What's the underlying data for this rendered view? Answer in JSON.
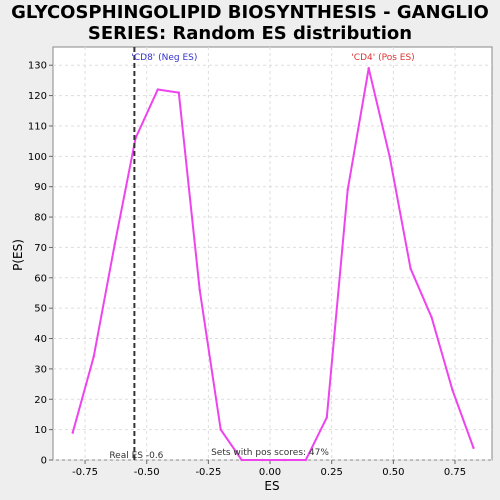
{
  "chart_data": {
    "type": "line",
    "title_lines": [
      "GLYCOSPHINGOLIPID BIOSYNTHESIS - GANGLIO",
      "SERIES: Random ES distribution"
    ],
    "xlabel": "ES",
    "ylabel": "P(ES)",
    "xlim": [
      -0.88,
      0.9
    ],
    "ylim": [
      0,
      136
    ],
    "xticks": [
      -0.75,
      -0.5,
      -0.25,
      0.0,
      0.25,
      0.5,
      0.75
    ],
    "xtick_labels": [
      "-0.75",
      "-0.50",
      "-0.25",
      "0.00",
      "0.25",
      "0.50",
      "0.75"
    ],
    "yticks": [
      0,
      10,
      20,
      30,
      40,
      50,
      60,
      70,
      80,
      90,
      100,
      110,
      120,
      130
    ],
    "ytick_labels": [
      "0",
      "10",
      "20",
      "30",
      "40",
      "50",
      "60",
      "70",
      "80",
      "90",
      "100",
      "110",
      "120",
      "130"
    ],
    "grid": true,
    "series": [
      {
        "color": "#ee44ee",
        "x": [
          -0.8,
          -0.715,
          -0.63,
          -0.545,
          -0.455,
          -0.37,
          -0.285,
          -0.2,
          -0.115,
          -0.03,
          0.06,
          0.145,
          0.23,
          0.315,
          0.4,
          0.485,
          0.57,
          0.655,
          0.74,
          0.825
        ],
        "y": [
          9,
          34,
          71,
          106,
          122,
          121,
          56,
          10,
          0,
          0,
          0,
          0,
          14,
          89,
          129,
          100,
          63,
          47,
          23,
          4
        ]
      }
    ],
    "real_es": -0.55,
    "annotations": {
      "neg_label": "'CD8' (Neg ES)",
      "pos_label": "'CD4' (Pos ES)",
      "real_es_label": "Real ES -0.6",
      "pos_scores_label": "Sets with pos scores: 47%"
    },
    "colors": {
      "neg": "#3333cc",
      "pos": "#dd3333",
      "line": "#ee44ee",
      "real_es_line": "#333333"
    }
  }
}
